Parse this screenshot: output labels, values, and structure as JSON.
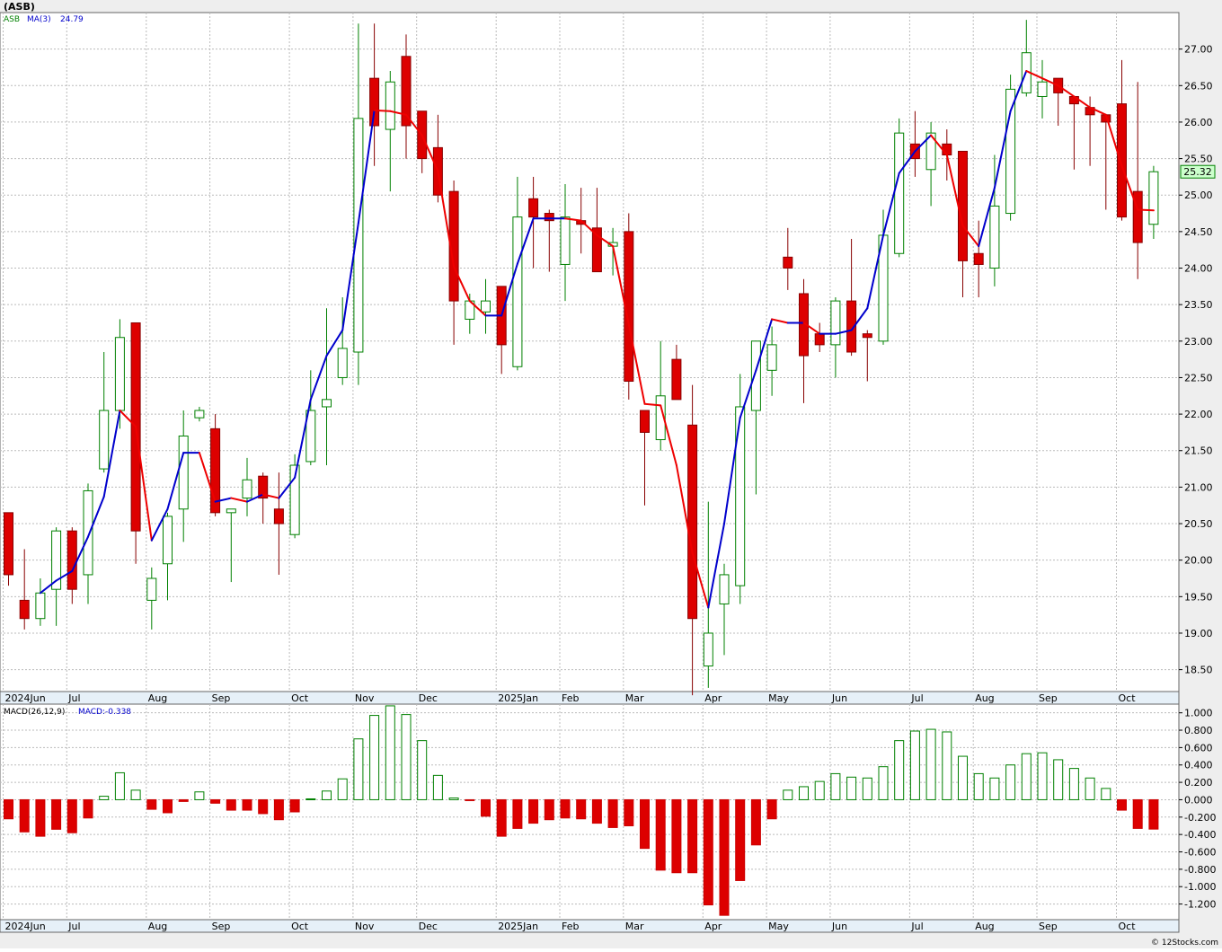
{
  "title": "(ASB)",
  "watermark": "© 12Stocks.com",
  "colors": {
    "up_candle": "#008000",
    "down_candle": "#dd0000",
    "ma_up": "#0000cc",
    "ma_down": "#ee0000",
    "grid": "#bbbbbb",
    "price_label_bg": "#ccffcc"
  },
  "chart_data": [
    {
      "type": "candlestick",
      "legend": {
        "symbol": "ASB",
        "indicator": "MA(3)",
        "indicator_value": "24.79"
      },
      "last_price_label": "25.32",
      "ylim": [
        18.2,
        27.5
      ],
      "y_ticks": [
        "18.50",
        "19.00",
        "19.50",
        "20.00",
        "20.50",
        "21.00",
        "21.50",
        "22.00",
        "22.50",
        "23.00",
        "23.50",
        "24.00",
        "24.50",
        "25.00",
        "25.50",
        "26.00",
        "26.50",
        "27.00"
      ],
      "x_labels": [
        {
          "label": "2024Jun",
          "i": 0
        },
        {
          "label": "Jul",
          "i": 4
        },
        {
          "label": "Aug",
          "i": 9
        },
        {
          "label": "Sep",
          "i": 13
        },
        {
          "label": "Oct",
          "i": 18
        },
        {
          "label": "Nov",
          "i": 22
        },
        {
          "label": "Dec",
          "i": 26
        },
        {
          "label": "2025Jan",
          "i": 31
        },
        {
          "label": "Feb",
          "i": 35
        },
        {
          "label": "Mar",
          "i": 39
        },
        {
          "label": "Apr",
          "i": 44
        },
        {
          "label": "May",
          "i": 48
        },
        {
          "label": "Jun",
          "i": 52
        },
        {
          "label": "Jul",
          "i": 57
        },
        {
          "label": "Aug",
          "i": 61
        },
        {
          "label": "Sep",
          "i": 65
        },
        {
          "label": "Oct",
          "i": 70
        }
      ],
      "ohlc": [
        [
          20.65,
          20.65,
          19.65,
          19.8
        ],
        [
          19.45,
          20.15,
          19.05,
          19.2
        ],
        [
          19.2,
          19.75,
          19.1,
          19.55
        ],
        [
          19.6,
          20.45,
          19.1,
          20.4
        ],
        [
          20.4,
          20.45,
          19.4,
          19.6
        ],
        [
          19.8,
          21.05,
          19.4,
          20.95
        ],
        [
          21.25,
          22.85,
          21.2,
          22.05
        ],
        [
          22.05,
          23.3,
          21.8,
          23.05
        ],
        [
          23.25,
          23.25,
          19.95,
          20.4
        ],
        [
          19.45,
          19.9,
          19.05,
          19.75
        ],
        [
          19.95,
          20.65,
          19.45,
          20.6
        ],
        [
          20.7,
          22.05,
          20.25,
          21.7
        ],
        [
          21.95,
          22.1,
          21.9,
          22.05
        ],
        [
          21.8,
          22.0,
          20.6,
          20.65
        ],
        [
          20.65,
          20.7,
          19.7,
          20.7
        ],
        [
          20.85,
          21.4,
          20.6,
          21.1
        ],
        [
          21.15,
          21.2,
          20.5,
          20.85
        ],
        [
          20.7,
          21.2,
          19.8,
          20.5
        ],
        [
          20.35,
          21.45,
          20.3,
          21.3
        ],
        [
          21.35,
          22.6,
          21.3,
          22.05
        ],
        [
          22.1,
          23.45,
          21.3,
          22.2
        ],
        [
          22.5,
          23.6,
          22.4,
          22.9
        ],
        [
          22.85,
          27.35,
          22.4,
          26.05
        ],
        [
          26.6,
          27.35,
          25.4,
          25.95
        ],
        [
          25.9,
          26.7,
          25.05,
          26.55
        ],
        [
          26.9,
          27.2,
          25.5,
          25.95
        ],
        [
          26.15,
          26.15,
          25.3,
          25.5
        ],
        [
          25.65,
          26.1,
          24.9,
          25.0
        ],
        [
          25.05,
          25.2,
          22.95,
          23.55
        ],
        [
          23.3,
          23.65,
          23.1,
          23.55
        ],
        [
          23.4,
          23.85,
          23.1,
          23.55
        ],
        [
          23.75,
          23.75,
          22.55,
          22.95
        ],
        [
          22.65,
          25.25,
          22.6,
          24.7
        ],
        [
          24.95,
          25.25,
          24.0,
          24.7
        ],
        [
          24.75,
          24.8,
          23.95,
          24.65
        ],
        [
          24.05,
          25.15,
          23.55,
          24.7
        ],
        [
          24.65,
          25.1,
          24.2,
          24.6
        ],
        [
          24.55,
          25.1,
          24.0,
          23.95
        ],
        [
          24.3,
          24.55,
          23.9,
          24.35
        ],
        [
          24.5,
          24.75,
          22.2,
          22.45
        ],
        [
          22.05,
          22.05,
          20.75,
          21.75
        ],
        [
          21.65,
          23.0,
          21.5,
          22.25
        ],
        [
          22.75,
          22.95,
          22.2,
          22.2
        ],
        [
          21.85,
          22.4,
          18.15,
          19.2
        ],
        [
          18.55,
          20.8,
          18.25,
          19.0
        ],
        [
          19.4,
          19.95,
          18.7,
          19.8
        ],
        [
          19.65,
          22.55,
          19.4,
          22.1
        ],
        [
          22.05,
          22.95,
          20.9,
          23.0
        ],
        [
          22.6,
          23.2,
          22.25,
          22.95
        ],
        [
          24.15,
          24.55,
          23.7,
          24.0
        ],
        [
          23.65,
          23.85,
          22.15,
          22.8
        ],
        [
          23.1,
          23.25,
          22.85,
          22.95
        ],
        [
          22.95,
          23.6,
          22.5,
          23.55
        ],
        [
          23.55,
          24.4,
          22.8,
          22.85
        ],
        [
          23.1,
          23.15,
          22.45,
          23.05
        ],
        [
          23.0,
          24.8,
          22.95,
          24.45
        ],
        [
          24.2,
          26.05,
          24.15,
          25.85
        ],
        [
          25.7,
          26.15,
          25.25,
          25.5
        ],
        [
          25.35,
          26.0,
          24.85,
          25.85
        ],
        [
          25.7,
          25.9,
          25.2,
          25.55
        ],
        [
          25.6,
          25.6,
          23.6,
          24.1
        ],
        [
          24.2,
          24.65,
          23.6,
          24.05
        ],
        [
          24.0,
          25.55,
          23.75,
          24.85
        ],
        [
          24.75,
          26.65,
          24.65,
          26.45
        ],
        [
          26.4,
          27.4,
          26.35,
          26.95
        ],
        [
          26.35,
          26.85,
          26.05,
          26.55
        ],
        [
          26.6,
          26.6,
          25.95,
          26.4
        ],
        [
          26.35,
          26.35,
          25.35,
          26.25
        ],
        [
          26.2,
          26.35,
          25.4,
          26.1
        ],
        [
          26.1,
          26.1,
          24.8,
          26.0
        ],
        [
          26.25,
          26.85,
          24.65,
          24.7
        ],
        [
          25.05,
          26.55,
          23.85,
          24.35
        ],
        [
          24.6,
          25.4,
          24.4,
          25.32
        ]
      ],
      "ma3": [
        null,
        null,
        19.55,
        19.72,
        19.85,
        20.32,
        20.87,
        22.05,
        21.83,
        20.27,
        20.7,
        21.47,
        21.47,
        20.8,
        20.85,
        20.8,
        20.9,
        20.85,
        21.13,
        22.2,
        22.8,
        23.15,
        24.62,
        26.16,
        26.15,
        26.1,
        25.82,
        25.33,
        24.02,
        23.55,
        23.35,
        23.35,
        24.06,
        24.68,
        24.68,
        24.68,
        24.65,
        24.45,
        24.3,
        23.23,
        22.14,
        22.12,
        21.3,
        20.1,
        19.35,
        20.5,
        21.95,
        22.6,
        23.3,
        23.25,
        23.25,
        23.1,
        23.1,
        23.15,
        23.45,
        24.45,
        25.3,
        25.6,
        25.82,
        25.55,
        24.58,
        24.3,
        25.1,
        26.15,
        26.7,
        26.6,
        26.5,
        26.35,
        26.2,
        26.1,
        25.4,
        24.8,
        24.79
      ],
      "ma_last_label": "24.79"
    },
    {
      "type": "bar",
      "legend": {
        "name": "MACD(26,12,9)",
        "value_label": "MACD:-0.338"
      },
      "ylim": [
        -1.38,
        1.1
      ],
      "y_ticks": [
        "1.000",
        "0.800",
        "0.600",
        "0.400",
        "0.200",
        "0.000",
        "-0.200",
        "-0.400",
        "-0.600",
        "-0.800",
        "-1.000",
        "-1.200"
      ],
      "x_labels": [
        {
          "label": "2024Jun",
          "i": 0
        },
        {
          "label": "Jul",
          "i": 4
        },
        {
          "label": "Aug",
          "i": 9
        },
        {
          "label": "Sep",
          "i": 13
        },
        {
          "label": "Oct",
          "i": 18
        },
        {
          "label": "Nov",
          "i": 22
        },
        {
          "label": "Dec",
          "i": 26
        },
        {
          "label": "2025Jan",
          "i": 31
        },
        {
          "label": "Feb",
          "i": 35
        },
        {
          "label": "Mar",
          "i": 39
        },
        {
          "label": "Apr",
          "i": 44
        },
        {
          "label": "May",
          "i": 48
        },
        {
          "label": "Jun",
          "i": 52
        },
        {
          "label": "Jul",
          "i": 57
        },
        {
          "label": "Aug",
          "i": 61
        },
        {
          "label": "Sep",
          "i": 65
        },
        {
          "label": "Oct",
          "i": 70
        }
      ],
      "values": [
        -0.22,
        -0.37,
        -0.42,
        -0.34,
        -0.38,
        -0.21,
        0.04,
        0.31,
        0.11,
        -0.11,
        -0.15,
        -0.02,
        0.09,
        -0.04,
        -0.12,
        -0.12,
        -0.16,
        -0.23,
        -0.14,
        0.01,
        0.1,
        0.24,
        0.7,
        0.97,
        1.08,
        0.98,
        0.68,
        0.28,
        0.02,
        -0.01,
        -0.19,
        -0.42,
        -0.33,
        -0.27,
        -0.23,
        -0.21,
        -0.22,
        -0.27,
        -0.32,
        -0.3,
        -0.56,
        -0.81,
        -0.84,
        -0.84,
        -1.21,
        -1.33,
        -0.93,
        -0.52,
        -0.22,
        0.11,
        0.15,
        0.21,
        0.3,
        0.26,
        0.25,
        0.38,
        0.68,
        0.79,
        0.81,
        0.78,
        0.5,
        0.3,
        0.25,
        0.4,
        0.53,
        0.54,
        0.46,
        0.36,
        0.25,
        0.13,
        -0.12,
        -0.33,
        -0.338
      ]
    }
  ]
}
